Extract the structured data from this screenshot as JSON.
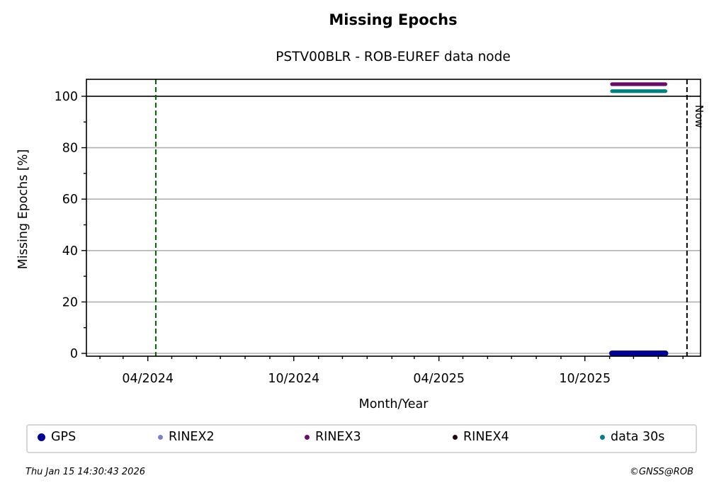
{
  "chart_data": {
    "type": "scatter",
    "title": "Missing Epochs",
    "subtitle": "PSTV00BLR - ROB-EUREF data node",
    "xlabel": "Month/Year",
    "ylabel": "Missing Epochs [%]",
    "xlim": [
      "2024-01-15",
      "2026-02-23"
    ],
    "ylim": [
      -1.1,
      106.6
    ],
    "x_ticks": [
      {
        "date": "2024-04-01",
        "label": "04/2024"
      },
      {
        "date": "2024-10-01",
        "label": "10/2024"
      },
      {
        "date": "2025-04-01",
        "label": "04/2025"
      },
      {
        "date": "2025-10-01",
        "label": "10/2025"
      }
    ],
    "y_ticks": [
      0,
      20,
      40,
      60,
      80,
      100
    ],
    "grid": "horizontal",
    "reference_lines": [
      {
        "type": "horizontal",
        "y": 100,
        "color": "#000000",
        "style": "solid"
      },
      {
        "type": "vertical",
        "date": "2024-04-11",
        "color": "#006400",
        "style": "dashed"
      },
      {
        "type": "vertical",
        "date": "2026-02-06",
        "color": "#000000",
        "style": "dashed",
        "label": "Now"
      }
    ],
    "x": [
      "2025-11-04",
      "2025-11-05",
      "2025-11-06",
      "2025-11-07",
      "2025-11-08",
      "2025-11-09",
      "2025-11-10",
      "2025-11-11",
      "2025-11-12",
      "2025-11-13",
      "2025-11-14",
      "2025-11-15",
      "2025-11-16",
      "2025-11-17",
      "2025-11-18",
      "2025-11-19",
      "2025-11-20",
      "2025-11-21",
      "2025-11-22",
      "2025-11-23",
      "2025-11-24",
      "2025-11-25",
      "2025-11-26",
      "2025-11-27",
      "2025-11-28",
      "2025-11-29",
      "2025-11-30",
      "2025-12-01",
      "2025-12-02",
      "2025-12-03",
      "2025-12-04",
      "2025-12-05",
      "2025-12-06",
      "2025-12-07",
      "2025-12-08",
      "2025-12-09",
      "2025-12-10",
      "2025-12-11",
      "2025-12-12",
      "2025-12-13",
      "2025-12-14",
      "2025-12-15",
      "2025-12-16",
      "2025-12-17",
      "2025-12-18",
      "2025-12-19",
      "2025-12-20",
      "2025-12-21",
      "2025-12-22",
      "2025-12-23",
      "2025-12-24",
      "2025-12-25",
      "2025-12-26",
      "2025-12-27",
      "2025-12-28",
      "2025-12-29",
      "2025-12-30",
      "2025-12-31",
      "2026-01-01",
      "2026-01-02",
      "2026-01-03",
      "2026-01-04",
      "2026-01-05",
      "2026-01-06",
      "2026-01-07",
      "2026-01-08",
      "2026-01-09",
      "2026-01-10"
    ],
    "series": [
      {
        "name": "GPS",
        "color": "#000096",
        "y": 0,
        "size": "large"
      },
      {
        "name": "RINEX2",
        "color": "#8080c0",
        "y": null,
        "size": "small"
      },
      {
        "name": "RINEX3",
        "color": "#6a0a6a",
        "y": 104.7,
        "size": "small"
      },
      {
        "name": "RINEX4",
        "color": "#200818",
        "y": null,
        "size": "small"
      },
      {
        "name": "data 30s",
        "color": "#008080",
        "y": 102,
        "size": "small"
      }
    ],
    "legend_position": "bottom"
  },
  "footer": {
    "timestamp": "Thu Jan 15 14:30:43 2026",
    "copyright": "©GNSS@ROB"
  }
}
